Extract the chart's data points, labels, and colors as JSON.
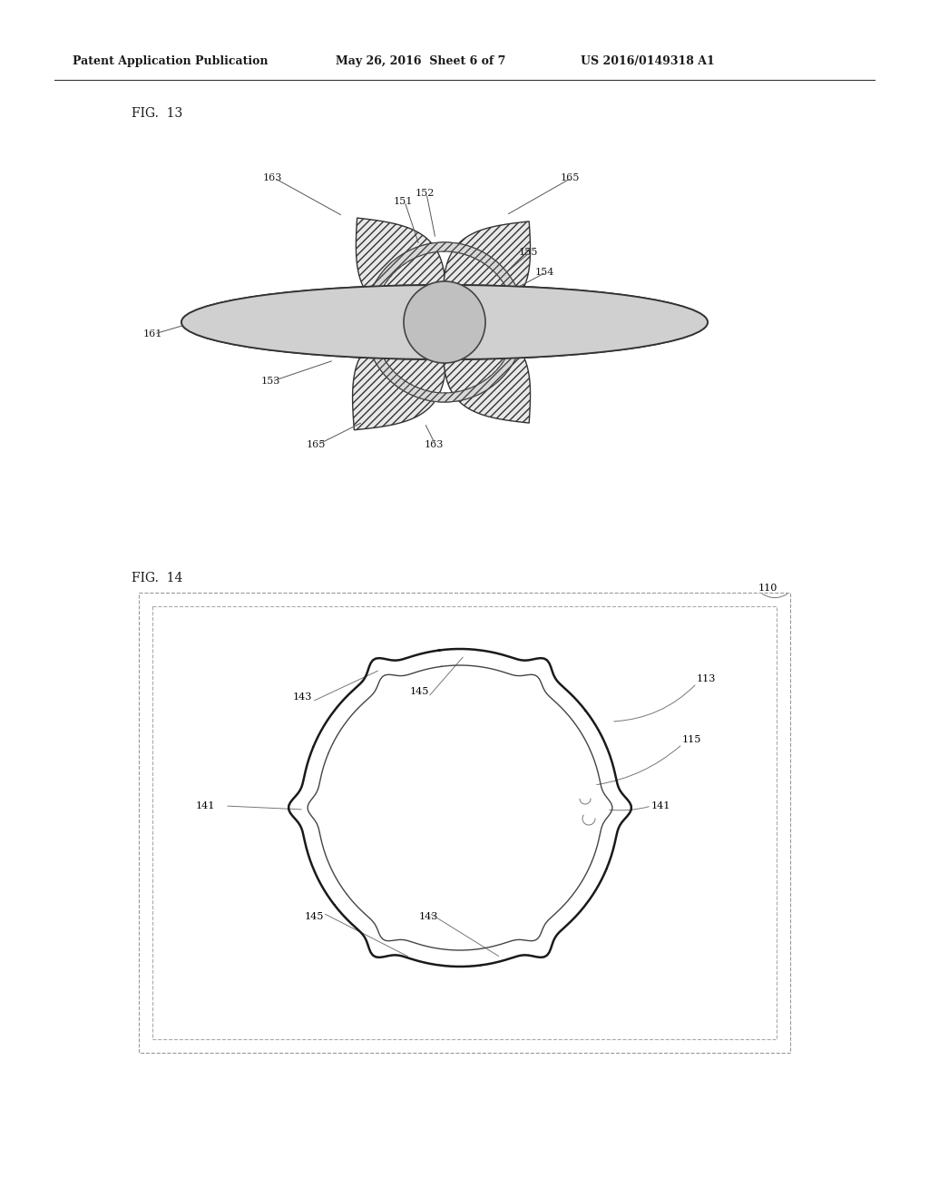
{
  "bg_color": "#ffffff",
  "header_text1": "Patent Application Publication",
  "header_text2": "May 26, 2016  Sheet 6 of 7",
  "header_text3": "US 2016/0149318 A1",
  "fig13_label": "FIG.  13",
  "fig14_label": "FIG.  14",
  "lfs": 8.0
}
